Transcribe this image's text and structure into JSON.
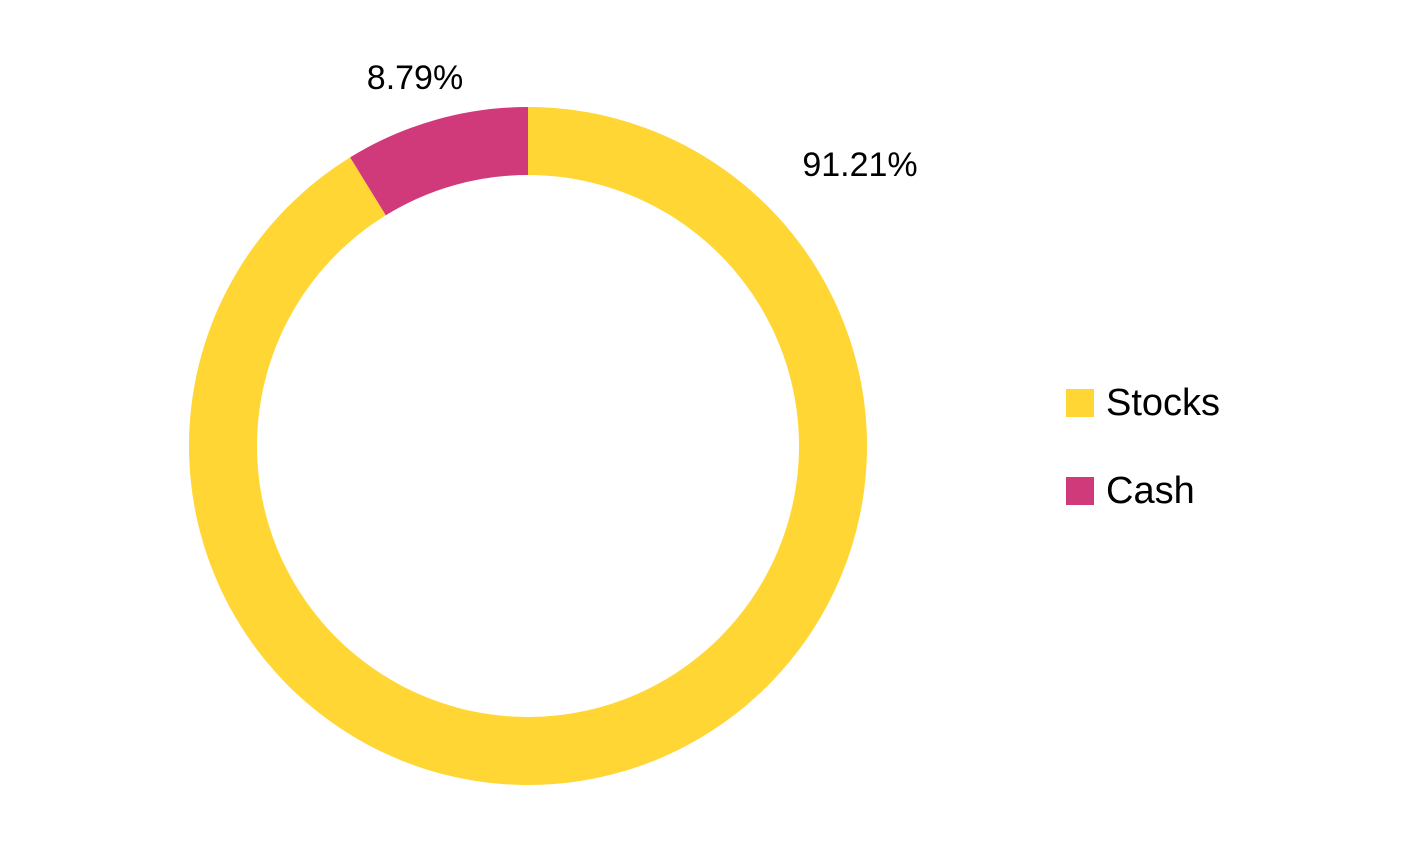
{
  "chart_data": {
    "type": "pie",
    "variant": "donut",
    "categories": [
      "Stocks",
      "Cash"
    ],
    "values": [
      91.21,
      8.79
    ],
    "value_unit": "%",
    "data_labels": [
      "91.21%",
      "8.79%"
    ],
    "colors": [
      "#FFD633",
      "#D13A7A"
    ],
    "start_angle": "12 o'clock",
    "direction": "clockwise",
    "legend": {
      "placement": "right",
      "entries": [
        "Stocks",
        "Cash"
      ]
    }
  }
}
